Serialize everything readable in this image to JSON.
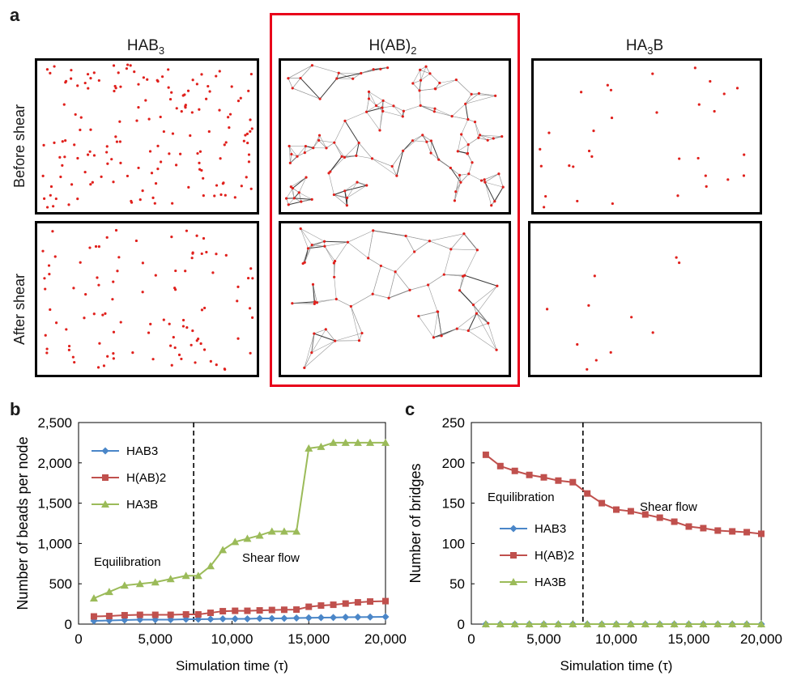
{
  "figure": {
    "panel_a": {
      "letter": "a",
      "columns": [
        {
          "base": "HAB",
          "sub": "3",
          "tail": ""
        },
        {
          "base": "H(AB)",
          "sub": "2",
          "tail": ""
        },
        {
          "base": "HA",
          "sub": "3",
          "tail": "B"
        }
      ],
      "rows": [
        "Before shear",
        "After shear"
      ]
    },
    "panel_b_letter": "b",
    "panel_c_letter": "c"
  },
  "colors": {
    "dot": "#e0201c",
    "bond": "#9a9a9a",
    "bond_dark": "#3a3a3a",
    "HAB3": "#4a86c8",
    "H(AB)2": "#c0504d",
    "HA3B": "#9bbb59",
    "highlight": "#e8001a"
  },
  "chart_data": [
    {
      "type": "line",
      "panel": "b",
      "xlabel": "Simulation time (τ)",
      "ylabel": "Number of beads per node",
      "xlim": [
        0,
        20000
      ],
      "ylim": [
        0,
        2500
      ],
      "xticks": [
        "0",
        "5,000",
        "10,000",
        "15,000",
        "20,000"
      ],
      "yticks": [
        "0",
        "500",
        "1,000",
        "1,500",
        "2,000",
        "2,500"
      ],
      "legend_position": "top-left",
      "divider_x": 7500,
      "annotations": [
        "Equilibration",
        "Shear flow"
      ],
      "x": [
        1000,
        2000,
        3000,
        4000,
        5000,
        6000,
        7000,
        7800,
        8600,
        9400,
        10200,
        11000,
        11800,
        12600,
        13400,
        14200,
        15000,
        15800,
        16600,
        17400,
        18200,
        19000,
        20000
      ],
      "series": [
        {
          "name": "HAB3",
          "marker": "diamond",
          "values": [
            40,
            45,
            50,
            55,
            55,
            55,
            60,
            60,
            62,
            65,
            65,
            65,
            70,
            70,
            72,
            75,
            78,
            80,
            82,
            85,
            87,
            88,
            90
          ]
        },
        {
          "name": "H(AB)2",
          "marker": "square",
          "values": [
            95,
            100,
            110,
            115,
            115,
            115,
            120,
            120,
            140,
            160,
            165,
            165,
            170,
            175,
            178,
            180,
            215,
            230,
            240,
            255,
            270,
            280,
            285
          ]
        },
        {
          "name": "HA3B",
          "marker": "triangle",
          "values": [
            320,
            400,
            480,
            500,
            520,
            560,
            600,
            600,
            720,
            920,
            1020,
            1060,
            1100,
            1150,
            1150,
            1150,
            2180,
            2200,
            2250,
            2250,
            2250,
            2250,
            2250
          ]
        }
      ]
    },
    {
      "type": "line",
      "panel": "c",
      "xlabel": "Simulation time (τ)",
      "ylabel": "Number of bridges",
      "xlim": [
        0,
        20000
      ],
      "ylim": [
        0,
        250
      ],
      "xticks": [
        "0",
        "5,000",
        "10,000",
        "15,000",
        "20,000"
      ],
      "yticks": [
        "0",
        "50",
        "100",
        "150",
        "200",
        "250"
      ],
      "legend_position": "center-left",
      "divider_x": 7700,
      "annotations": [
        "Equilibration",
        "Shear flow"
      ],
      "x": [
        1000,
        2000,
        3000,
        4000,
        5000,
        6000,
        7000,
        8000,
        9000,
        10000,
        11000,
        12000,
        13000,
        14000,
        15000,
        16000,
        17000,
        18000,
        19000,
        20000
      ],
      "series": [
        {
          "name": "HAB3",
          "marker": "diamond",
          "values": [
            0,
            0,
            0,
            0,
            0,
            0,
            0,
            0,
            0,
            0,
            0,
            0,
            0,
            0,
            0,
            0,
            0,
            0,
            0,
            0
          ]
        },
        {
          "name": "H(AB)2",
          "marker": "square",
          "values": [
            210,
            196,
            190,
            185,
            182,
            178,
            176,
            162,
            150,
            142,
            140,
            136,
            132,
            127,
            121,
            119,
            116,
            115,
            114,
            112
          ]
        },
        {
          "name": "HA3B",
          "marker": "triangle",
          "values": [
            0,
            0,
            0,
            0,
            0,
            0,
            0,
            0,
            0,
            0,
            0,
            0,
            0,
            0,
            0,
            0,
            0,
            0,
            0,
            0
          ]
        }
      ]
    }
  ]
}
